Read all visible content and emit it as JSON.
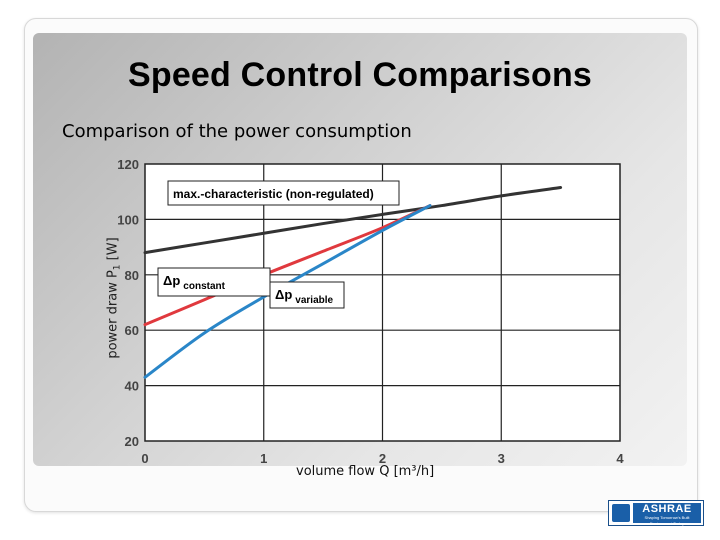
{
  "slide": {
    "title": "Speed Control Comparisons",
    "subtitle": "Comparison of the power consumption",
    "logo_text": "ASHRAE",
    "logo_tagline": "Shaping Tomorrow's Built Environment Today"
  },
  "chart_data": {
    "type": "line",
    "xlabel": "volume flow Q [m³/h]",
    "ylabel_main": "power draw P",
    "ylabel_sub": "1",
    "ylabel_unit": " [W]",
    "xlim": [
      0,
      4
    ],
    "ylim": [
      20,
      120
    ],
    "x_ticks": [
      0,
      1,
      2,
      3,
      4
    ],
    "y_ticks": [
      20,
      40,
      60,
      80,
      100,
      120
    ],
    "grid": true,
    "series": [
      {
        "name": "max.-characteristic (non-regulated)",
        "color": "#333333",
        "x": [
          0,
          0.5,
          1.0,
          1.5,
          2.0,
          2.5,
          3.0,
          3.5
        ],
        "y": [
          88,
          91.5,
          95,
          98.5,
          101.8,
          105,
          108.5,
          111.5
        ]
      },
      {
        "name": "Δp constant",
        "color": "#e0393e",
        "x": [
          0,
          0.5,
          1.0,
          1.5,
          2.0,
          2.4
        ],
        "y": [
          62,
          71,
          80,
          88.5,
          97,
          105
        ]
      },
      {
        "name": "Δp variable",
        "color": "#2a86c8",
        "x": [
          0,
          0.5,
          1.0,
          1.5,
          2.0,
          2.4
        ],
        "y": [
          43,
          59,
          72,
          84,
          96,
          105
        ]
      }
    ],
    "annotations": [
      {
        "symbol": "Δp",
        "sub": "",
        "text": "max.-characteristic (non-regulated)"
      },
      {
        "symbol": "Δp",
        "sub": "constant",
        "text": ""
      },
      {
        "symbol": "Δp",
        "sub": "variable",
        "text": ""
      }
    ]
  }
}
